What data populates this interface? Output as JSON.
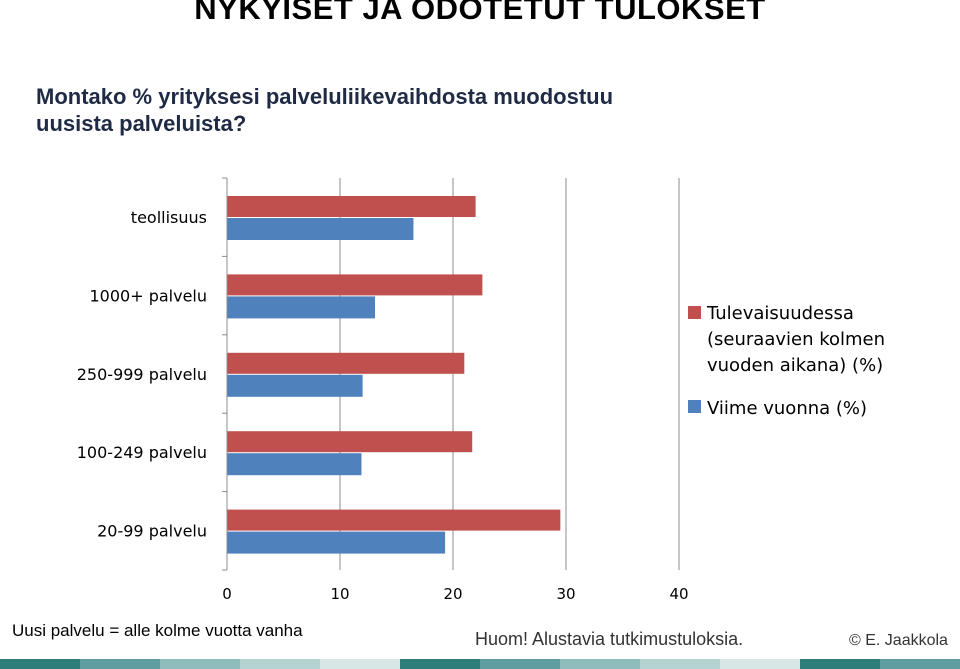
{
  "title": "NYKYISET JA ODOTETUT TULOKSET",
  "question": "Montako % yrityksesi palveluliikevaihdosta muodostuu uusista palveluista?",
  "chart_data": {
    "type": "bar",
    "orientation": "horizontal",
    "categories": [
      "teollisuus",
      "1000+ palvelu",
      "250-999 palvelu",
      "100-249 palvelu",
      "20-99 palvelu"
    ],
    "series": [
      {
        "name": "Tulevaisuudessa (seuraavien kolmen vuoden aikana) (%)",
        "color": "#c0504d",
        "values": [
          22.0,
          22.6,
          21.0,
          21.7,
          29.5
        ]
      },
      {
        "name": "Viime vuonna (%)",
        "color": "#4f81bd",
        "values": [
          16.5,
          13.1,
          12.0,
          11.9,
          19.3
        ]
      }
    ],
    "xlim": [
      0,
      40
    ],
    "xticks": [
      "0",
      "10",
      "20",
      "30",
      "40"
    ],
    "grid": true,
    "legend_position": "right"
  },
  "footer": {
    "note": "Uusi palvelu = alle kolme vuotta vanha",
    "disclaimer": "Huom! Alustavia tutkimustuloksia.",
    "copyright": "© E. Jaakkola"
  },
  "stripe_colors": [
    "#2e7d7a",
    "#5f9ea0",
    "#8fbcbc",
    "#b5d3d0",
    "#d7e7e5",
    "#2e7d7a",
    "#5f9ea0",
    "#8fbcbc",
    "#b5d3d0",
    "#d7e7e5",
    "#2e7d7a",
    "#5f9ea0"
  ]
}
